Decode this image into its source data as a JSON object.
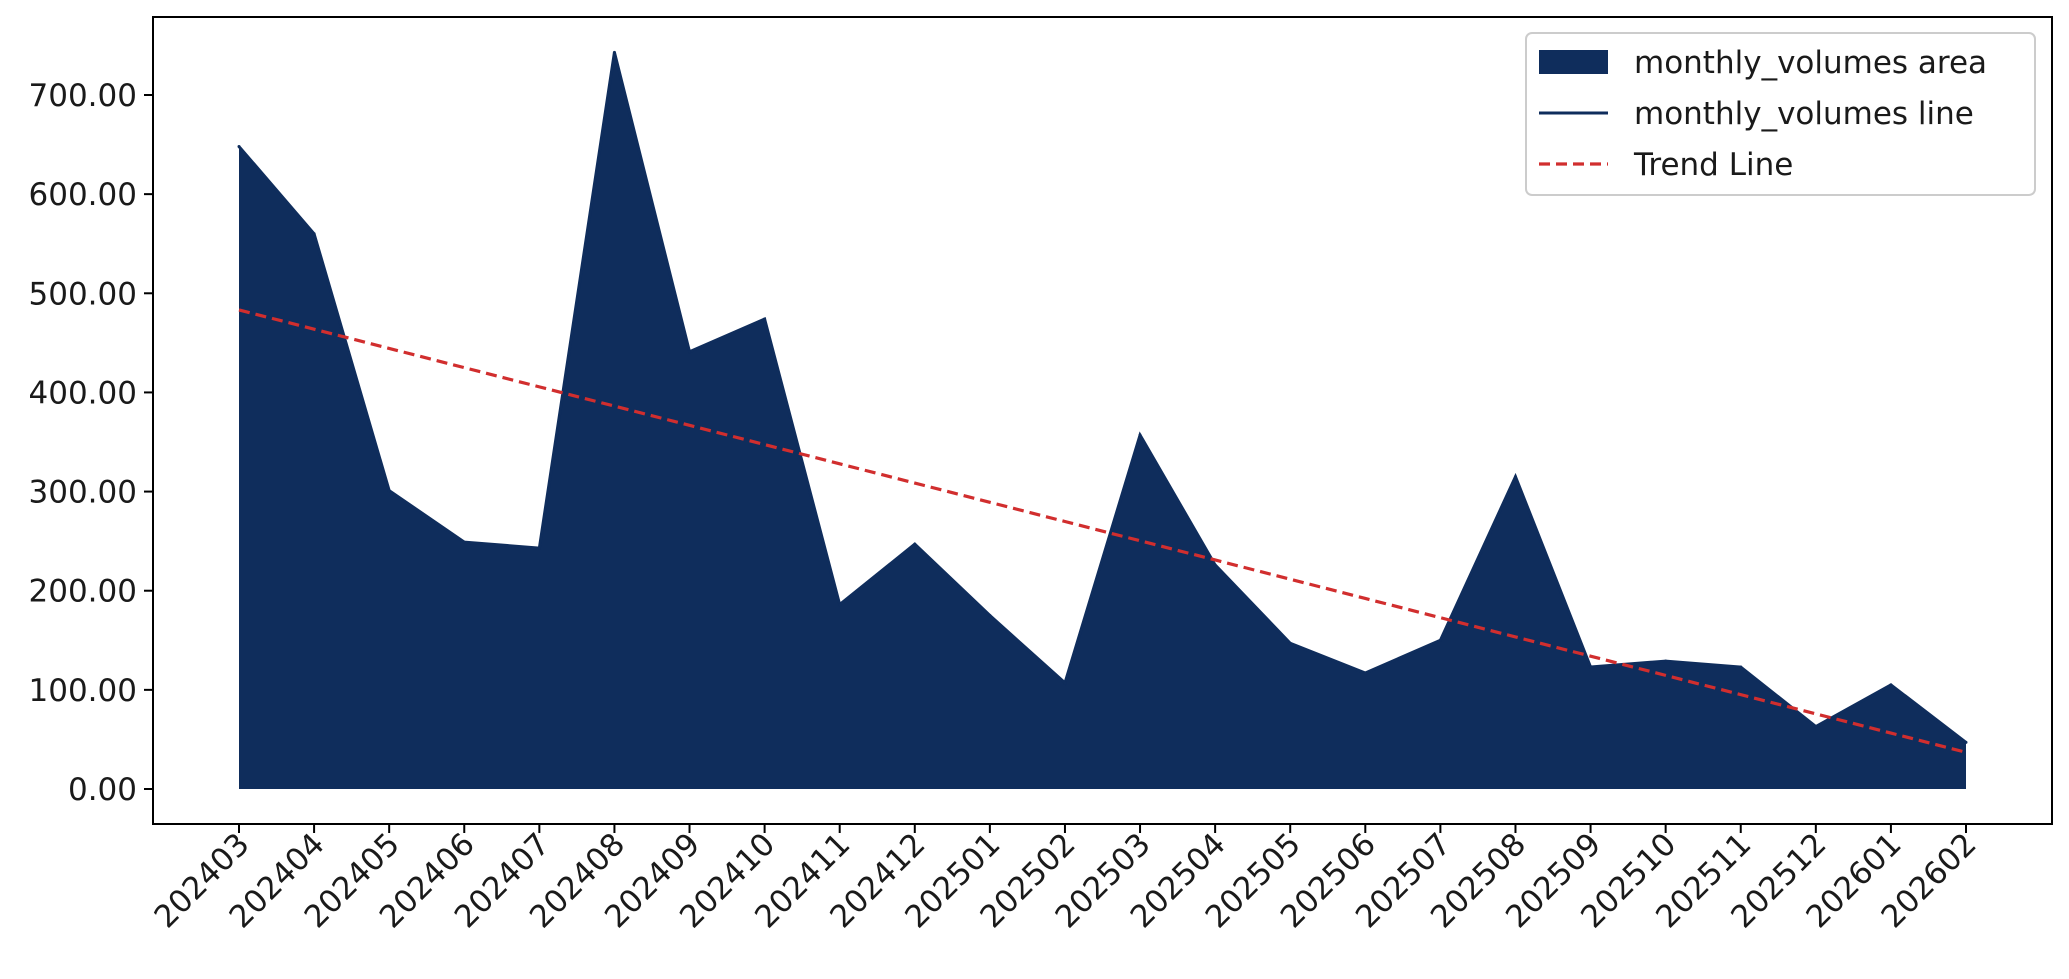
{
  "chart_data": {
    "type": "area",
    "categories": [
      "202403",
      "202404",
      "202405",
      "202406",
      "202407",
      "202408",
      "202409",
      "202410",
      "202411",
      "202412",
      "202501",
      "202502",
      "202503",
      "202504",
      "202505",
      "202506",
      "202507",
      "202508",
      "202509",
      "202510",
      "202511",
      "202512",
      "202601",
      "202602"
    ],
    "series": [
      {
        "name": "monthly_volumes area",
        "kind": "area",
        "color": "#0f2d5c",
        "values": [
          648,
          560,
          301,
          249,
          243,
          743,
          441,
          474,
          186,
          247,
          175,
          107,
          357,
          226,
          147,
          117,
          150,
          315,
          123,
          129,
          123,
          63,
          105,
          47
        ]
      },
      {
        "name": "monthly_volumes line",
        "kind": "line",
        "color": "#0f2d5c",
        "values": [
          648,
          560,
          301,
          249,
          243,
          743,
          441,
          474,
          186,
          247,
          175,
          107,
          357,
          226,
          147,
          117,
          150,
          315,
          123,
          129,
          123,
          63,
          105,
          47
        ]
      },
      {
        "name": "Trend Line",
        "kind": "trend",
        "color": "#d12e2e",
        "values": [
          483.2,
          463.8,
          444.4,
          425.0,
          405.6,
          386.2,
          366.8,
          347.4,
          328.0,
          308.6,
          289.2,
          269.8,
          250.4,
          231.0,
          211.6,
          192.2,
          172.8,
          153.4,
          134.0,
          114.6,
          95.2,
          75.8,
          56.4,
          37.0
        ]
      }
    ],
    "y_ticks": [
      "0.00",
      "100.00",
      "200.00",
      "300.00",
      "400.00",
      "500.00",
      "600.00",
      "700.00"
    ],
    "ylim": [
      -35,
      780
    ],
    "title": "",
    "xlabel": "",
    "ylabel": "",
    "legend_position": "top-right",
    "grid": false
  }
}
